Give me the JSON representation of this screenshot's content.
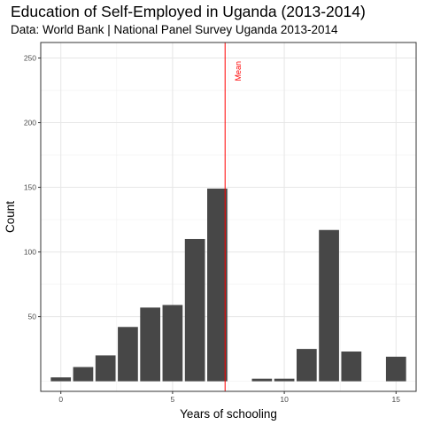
{
  "chart_data": {
    "type": "bar",
    "title": "Education of Self-Employed in Uganda (2013-2014)",
    "subtitle": "Data: World Bank | National Panel Survey Uganda 2013-2014",
    "xlabel": "Years of schooling",
    "ylabel": "Count",
    "x": [
      0,
      1,
      2,
      3,
      4,
      5,
      6,
      7,
      8,
      9,
      10,
      11,
      12,
      13,
      14,
      15
    ],
    "values": [
      3,
      11,
      20,
      42,
      57,
      59,
      110,
      149,
      0,
      2,
      2,
      25,
      117,
      23,
      0,
      19
    ],
    "xlim": [
      -0.9,
      15.9
    ],
    "ylim": [
      -7.8,
      262
    ],
    "x_ticks": [
      0,
      5,
      10,
      15
    ],
    "y_ticks": [
      50,
      100,
      150,
      200,
      250
    ],
    "bar_color": "#474747",
    "grid": true,
    "annotations": [
      {
        "type": "vline",
        "x": 7.35,
        "label": "Mean",
        "color": "#ff0000"
      }
    ]
  }
}
